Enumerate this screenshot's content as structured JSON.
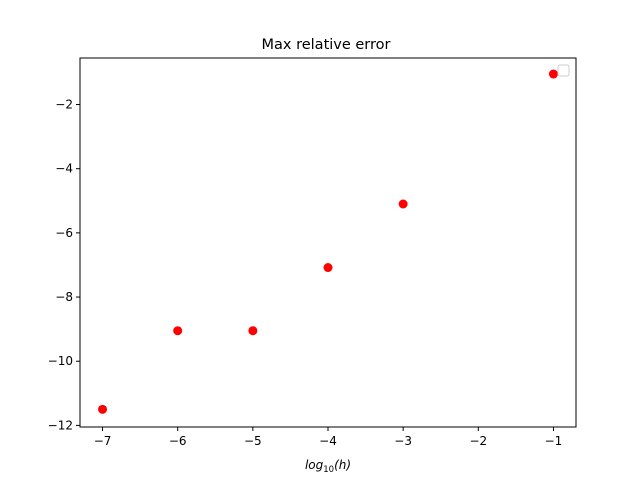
{
  "chart_data": {
    "type": "scatter",
    "title": "Max relative error",
    "xlabel": {
      "prefix": "log",
      "subscript": "10",
      "suffix": "(h)"
    },
    "ylabel": "",
    "xlim": [
      -7.3,
      -0.7
    ],
    "ylim": [
      -12.05,
      -0.55
    ],
    "x_ticks": [
      -7,
      -6,
      -5,
      -4,
      -3,
      -2,
      -1
    ],
    "x_tick_labels": [
      "−7",
      "−6",
      "−5",
      "−4",
      "−3",
      "−2",
      "−1"
    ],
    "y_ticks": [
      -12,
      -10,
      -8,
      -6,
      -4,
      -2
    ],
    "y_tick_labels": [
      "−12",
      "−10",
      "−8",
      "−6",
      "−4",
      "−2"
    ],
    "grid": false,
    "legend": {
      "placement": "top-right",
      "entries": []
    },
    "series": [
      {
        "color": "#ff0000",
        "marker": "circle",
        "points": [
          {
            "x": -7,
            "y": -11.5
          },
          {
            "x": -6,
            "y": -9.05
          },
          {
            "x": -5,
            "y": -9.05
          },
          {
            "x": -4,
            "y": -7.08
          },
          {
            "x": -3,
            "y": -5.1
          },
          {
            "x": -1,
            "y": -1.05
          }
        ]
      }
    ]
  }
}
